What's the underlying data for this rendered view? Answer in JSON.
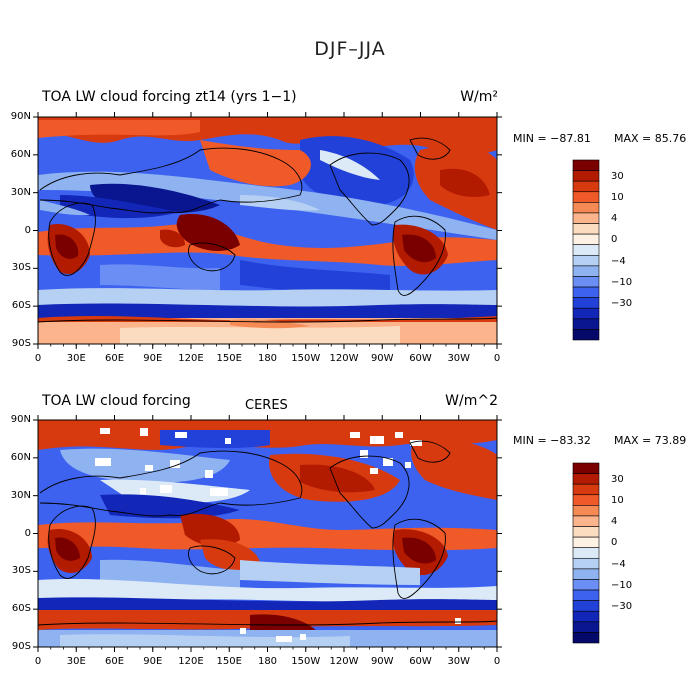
{
  "figure": {
    "title": "DJF–JJA"
  },
  "panels": [
    {
      "title": "TOA LW cloud forcing zt14 (yrs 1−1)",
      "tag": "",
      "units": "W/m²",
      "min_text": "MIN = −87.81",
      "max_text": "MAX =  85.76"
    },
    {
      "title": "TOA LW cloud forcing",
      "tag": "CERES",
      "units": "W/m^2",
      "min_text": "MIN = −83.32",
      "max_text": "MAX =  73.89"
    }
  ],
  "axes": {
    "lon_labels": [
      "0",
      "30E",
      "60E",
      "90E",
      "120E",
      "150E",
      "180",
      "150W",
      "120W",
      "90W",
      "60W",
      "30W",
      "0"
    ],
    "lat_labels": [
      "90N",
      "60N",
      "30N",
      "0",
      "30S",
      "60S",
      "90S"
    ],
    "lat_values": [
      90,
      60,
      30,
      0,
      -30,
      -60,
      -90
    ]
  },
  "colorbar": {
    "labels": [
      "30",
      "10",
      "4",
      "0",
      "−4",
      "−10",
      "−30"
    ],
    "colors": [
      "#7a0000",
      "#b31b00",
      "#d83a10",
      "#f05a28",
      "#f68a55",
      "#fbb48c",
      "#fcdcc0",
      "#fdf1e4",
      "#dceaf8",
      "#b6d0f4",
      "#8fb2f0",
      "#6a8ef4",
      "#3d62f0",
      "#2141d8",
      "#1226b8",
      "#0a1690",
      "#050a6a"
    ]
  }
}
